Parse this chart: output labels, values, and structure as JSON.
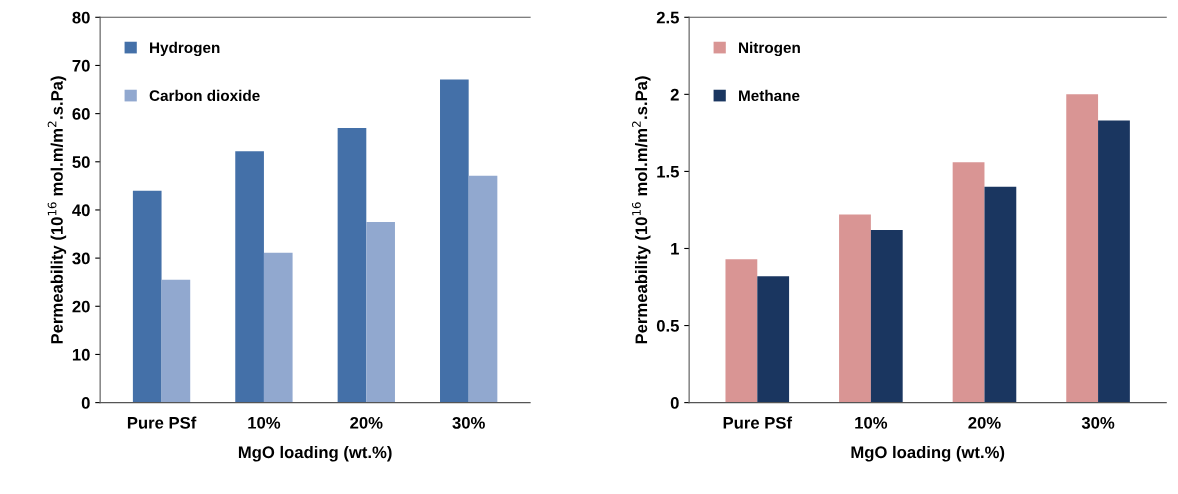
{
  "chart_data": [
    {
      "type": "bar",
      "xlabel": "MgO loading (wt.%)",
      "ylabel": "Permeability (10$^{16}$ mol.m/m$^{2}$.s.Pa)",
      "categories": [
        "Pure PSf",
        "10%",
        "20%",
        "30%"
      ],
      "series": [
        {
          "name": "Hydrogen",
          "color": "#4470a8",
          "values": [
            44,
            52.2,
            57,
            67.1
          ]
        },
        {
          "name": "Carbon dioxide",
          "color": "#91a8cf",
          "values": [
            25.5,
            31.1,
            37.5,
            47.1
          ]
        }
      ],
      "ylim": [
        0,
        80
      ],
      "yticks": [
        0,
        10,
        20,
        30,
        40,
        50,
        60,
        70,
        80
      ],
      "grid": false,
      "legend": "top left"
    },
    {
      "type": "bar",
      "xlabel": "MgO loading (wt.%)",
      "ylabel": "Permeability (10$^{16}$ mol.m/m$^{2}$.s.Pa)",
      "categories": [
        "Pure PSf",
        "10%",
        "20%",
        "30%"
      ],
      "series": [
        {
          "name": "Nitrogen",
          "color": "#d99594",
          "values": [
            0.93,
            1.22,
            1.56,
            2.0
          ]
        },
        {
          "name": "Methane",
          "color": "#1a3660",
          "values": [
            0.82,
            1.12,
            1.4,
            1.83
          ]
        }
      ],
      "ylim": [
        0,
        2.5
      ],
      "yticks": [
        0,
        0.5,
        1,
        1.5,
        2,
        2.5
      ],
      "grid": false,
      "legend": "top left"
    }
  ]
}
